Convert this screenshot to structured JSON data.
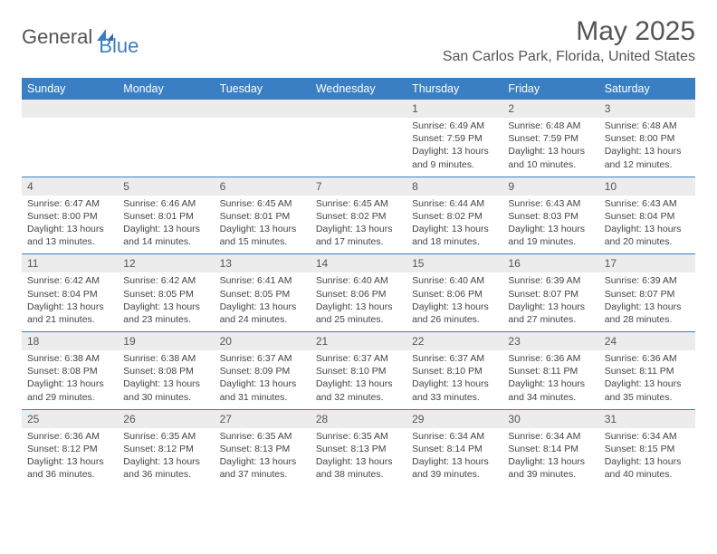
{
  "logo": {
    "part1": "General",
    "part2": "Blue"
  },
  "title": "May 2025",
  "location": "San Carlos Park, Florida, United States",
  "colors": {
    "brand_blue": "#3a7fc4",
    "header_gray": "#ececec",
    "text_gray": "#555555",
    "body_text": "#444444",
    "background": "#ffffff"
  },
  "day_headers": [
    "Sunday",
    "Monday",
    "Tuesday",
    "Wednesday",
    "Thursday",
    "Friday",
    "Saturday"
  ],
  "weeks": [
    [
      null,
      null,
      null,
      null,
      {
        "n": "1",
        "sr": "Sunrise: 6:49 AM",
        "ss": "Sunset: 7:59 PM",
        "d1": "Daylight: 13 hours",
        "d2": "and 9 minutes."
      },
      {
        "n": "2",
        "sr": "Sunrise: 6:48 AM",
        "ss": "Sunset: 7:59 PM",
        "d1": "Daylight: 13 hours",
        "d2": "and 10 minutes."
      },
      {
        "n": "3",
        "sr": "Sunrise: 6:48 AM",
        "ss": "Sunset: 8:00 PM",
        "d1": "Daylight: 13 hours",
        "d2": "and 12 minutes."
      }
    ],
    [
      {
        "n": "4",
        "sr": "Sunrise: 6:47 AM",
        "ss": "Sunset: 8:00 PM",
        "d1": "Daylight: 13 hours",
        "d2": "and 13 minutes."
      },
      {
        "n": "5",
        "sr": "Sunrise: 6:46 AM",
        "ss": "Sunset: 8:01 PM",
        "d1": "Daylight: 13 hours",
        "d2": "and 14 minutes."
      },
      {
        "n": "6",
        "sr": "Sunrise: 6:45 AM",
        "ss": "Sunset: 8:01 PM",
        "d1": "Daylight: 13 hours",
        "d2": "and 15 minutes."
      },
      {
        "n": "7",
        "sr": "Sunrise: 6:45 AM",
        "ss": "Sunset: 8:02 PM",
        "d1": "Daylight: 13 hours",
        "d2": "and 17 minutes."
      },
      {
        "n": "8",
        "sr": "Sunrise: 6:44 AM",
        "ss": "Sunset: 8:02 PM",
        "d1": "Daylight: 13 hours",
        "d2": "and 18 minutes."
      },
      {
        "n": "9",
        "sr": "Sunrise: 6:43 AM",
        "ss": "Sunset: 8:03 PM",
        "d1": "Daylight: 13 hours",
        "d2": "and 19 minutes."
      },
      {
        "n": "10",
        "sr": "Sunrise: 6:43 AM",
        "ss": "Sunset: 8:04 PM",
        "d1": "Daylight: 13 hours",
        "d2": "and 20 minutes."
      }
    ],
    [
      {
        "n": "11",
        "sr": "Sunrise: 6:42 AM",
        "ss": "Sunset: 8:04 PM",
        "d1": "Daylight: 13 hours",
        "d2": "and 21 minutes."
      },
      {
        "n": "12",
        "sr": "Sunrise: 6:42 AM",
        "ss": "Sunset: 8:05 PM",
        "d1": "Daylight: 13 hours",
        "d2": "and 23 minutes."
      },
      {
        "n": "13",
        "sr": "Sunrise: 6:41 AM",
        "ss": "Sunset: 8:05 PM",
        "d1": "Daylight: 13 hours",
        "d2": "and 24 minutes."
      },
      {
        "n": "14",
        "sr": "Sunrise: 6:40 AM",
        "ss": "Sunset: 8:06 PM",
        "d1": "Daylight: 13 hours",
        "d2": "and 25 minutes."
      },
      {
        "n": "15",
        "sr": "Sunrise: 6:40 AM",
        "ss": "Sunset: 8:06 PM",
        "d1": "Daylight: 13 hours",
        "d2": "and 26 minutes."
      },
      {
        "n": "16",
        "sr": "Sunrise: 6:39 AM",
        "ss": "Sunset: 8:07 PM",
        "d1": "Daylight: 13 hours",
        "d2": "and 27 minutes."
      },
      {
        "n": "17",
        "sr": "Sunrise: 6:39 AM",
        "ss": "Sunset: 8:07 PM",
        "d1": "Daylight: 13 hours",
        "d2": "and 28 minutes."
      }
    ],
    [
      {
        "n": "18",
        "sr": "Sunrise: 6:38 AM",
        "ss": "Sunset: 8:08 PM",
        "d1": "Daylight: 13 hours",
        "d2": "and 29 minutes."
      },
      {
        "n": "19",
        "sr": "Sunrise: 6:38 AM",
        "ss": "Sunset: 8:08 PM",
        "d1": "Daylight: 13 hours",
        "d2": "and 30 minutes."
      },
      {
        "n": "20",
        "sr": "Sunrise: 6:37 AM",
        "ss": "Sunset: 8:09 PM",
        "d1": "Daylight: 13 hours",
        "d2": "and 31 minutes."
      },
      {
        "n": "21",
        "sr": "Sunrise: 6:37 AM",
        "ss": "Sunset: 8:10 PM",
        "d1": "Daylight: 13 hours",
        "d2": "and 32 minutes."
      },
      {
        "n": "22",
        "sr": "Sunrise: 6:37 AM",
        "ss": "Sunset: 8:10 PM",
        "d1": "Daylight: 13 hours",
        "d2": "and 33 minutes."
      },
      {
        "n": "23",
        "sr": "Sunrise: 6:36 AM",
        "ss": "Sunset: 8:11 PM",
        "d1": "Daylight: 13 hours",
        "d2": "and 34 minutes."
      },
      {
        "n": "24",
        "sr": "Sunrise: 6:36 AM",
        "ss": "Sunset: 8:11 PM",
        "d1": "Daylight: 13 hours",
        "d2": "and 35 minutes."
      }
    ],
    [
      {
        "n": "25",
        "sr": "Sunrise: 6:36 AM",
        "ss": "Sunset: 8:12 PM",
        "d1": "Daylight: 13 hours",
        "d2": "and 36 minutes."
      },
      {
        "n": "26",
        "sr": "Sunrise: 6:35 AM",
        "ss": "Sunset: 8:12 PM",
        "d1": "Daylight: 13 hours",
        "d2": "and 36 minutes."
      },
      {
        "n": "27",
        "sr": "Sunrise: 6:35 AM",
        "ss": "Sunset: 8:13 PM",
        "d1": "Daylight: 13 hours",
        "d2": "and 37 minutes."
      },
      {
        "n": "28",
        "sr": "Sunrise: 6:35 AM",
        "ss": "Sunset: 8:13 PM",
        "d1": "Daylight: 13 hours",
        "d2": "and 38 minutes."
      },
      {
        "n": "29",
        "sr": "Sunrise: 6:34 AM",
        "ss": "Sunset: 8:14 PM",
        "d1": "Daylight: 13 hours",
        "d2": "and 39 minutes."
      },
      {
        "n": "30",
        "sr": "Sunrise: 6:34 AM",
        "ss": "Sunset: 8:14 PM",
        "d1": "Daylight: 13 hours",
        "d2": "and 39 minutes."
      },
      {
        "n": "31",
        "sr": "Sunrise: 6:34 AM",
        "ss": "Sunset: 8:15 PM",
        "d1": "Daylight: 13 hours",
        "d2": "and 40 minutes."
      }
    ]
  ]
}
